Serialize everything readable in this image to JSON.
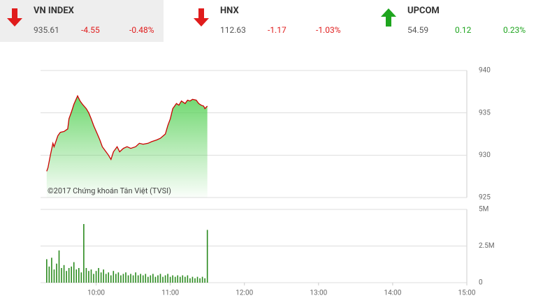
{
  "indices": [
    {
      "name": "VN INDEX",
      "value": "935.61",
      "change": "-4.55",
      "percent": "-0.48%"
    },
    {
      "name": "HNX",
      "value": "112.63",
      "change": "-1.17",
      "percent": "-1.03%"
    },
    {
      "name": "UPCOM",
      "value": "54.59",
      "change": "0.12",
      "percent": "0.23%"
    }
  ],
  "chart_data": [
    {
      "type": "area",
      "color": "#cc0000",
      "annotation": "©2017 Chứng khoán Tân Việt (TVSI)",
      "x": [
        560,
        561,
        563,
        565,
        566,
        569,
        571,
        574,
        577,
        578,
        580,
        582,
        585,
        587,
        589,
        592,
        594,
        596,
        598,
        601,
        603,
        605,
        608,
        610,
        612,
        614,
        617,
        619,
        622,
        625,
        628,
        632,
        635,
        638,
        642,
        645,
        649,
        652,
        656,
        658,
        660,
        662,
        665,
        667,
        669,
        672,
        674,
        676,
        678,
        681,
        683,
        685,
        687,
        688,
        690
      ],
      "values": [
        928.1,
        928.5,
        930.0,
        931.4,
        931.0,
        932.3,
        932.7,
        932.8,
        933.1,
        934.3,
        935.1,
        936.0,
        937.0,
        936.4,
        936.0,
        935.5,
        935.0,
        934.3,
        933.5,
        932.5,
        931.8,
        931.0,
        930.4,
        930.0,
        929.5,
        930.4,
        931.0,
        930.4,
        930.8,
        931.0,
        930.8,
        931.0,
        931.4,
        931.3,
        931.4,
        931.6,
        931.8,
        932.0,
        932.5,
        933.5,
        934.3,
        935.5,
        936.1,
        935.9,
        936.4,
        936.1,
        936.5,
        936.4,
        936.6,
        936.5,
        936.1,
        935.9,
        935.8,
        935.5,
        935.8
      ],
      "xlim": [
        555,
        900
      ],
      "ylim": [
        925,
        940
      ],
      "yticks": [
        925,
        930,
        935,
        940
      ],
      "grid": true
    },
    {
      "type": "bar",
      "color": "#2a8a1e",
      "x": [
        560,
        562,
        564,
        566,
        568,
        570,
        572,
        574,
        576,
        578,
        580,
        582,
        584,
        586,
        588,
        590,
        592,
        594,
        596,
        598,
        600,
        602,
        604,
        606,
        608,
        610,
        612,
        614,
        616,
        618,
        620,
        622,
        624,
        626,
        628,
        630,
        632,
        634,
        636,
        638,
        640,
        642,
        644,
        646,
        648,
        650,
        652,
        654,
        656,
        658,
        660,
        662,
        664,
        666,
        668,
        670,
        672,
        674,
        676,
        678,
        680,
        682,
        684,
        686,
        688,
        690
      ],
      "values": [
        1.6,
        1.1,
        1.7,
        0.9,
        1.3,
        2.2,
        1.0,
        1.2,
        0.8,
        1.0,
        1.1,
        1.4,
        0.9,
        1.0,
        0.7,
        4.0,
        1.0,
        0.8,
        0.9,
        0.6,
        0.8,
        1.0,
        0.7,
        0.9,
        0.6,
        0.7,
        0.5,
        0.8,
        0.6,
        0.7,
        0.5,
        0.6,
        0.7,
        0.5,
        0.6,
        0.5,
        0.7,
        0.5,
        0.6,
        0.5,
        0.6,
        0.4,
        0.5,
        0.6,
        0.4,
        0.5,
        0.6,
        0.4,
        0.5,
        0.6,
        0.4,
        0.5,
        0.4,
        0.5,
        0.4,
        0.5,
        0.4,
        0.5,
        0.3,
        0.4,
        0.3,
        0.4,
        0.3,
        0.4,
        0.3,
        3.6
      ],
      "xlim": [
        555,
        900
      ],
      "xticks": [
        {
          "value": 600,
          "label": "10:00"
        },
        {
          "value": 660,
          "label": "11:00"
        },
        {
          "value": 720,
          "label": "12:00"
        },
        {
          "value": 780,
          "label": "13:00"
        },
        {
          "value": 840,
          "label": "14:00"
        },
        {
          "value": 900,
          "label": "15:00"
        }
      ],
      "ylim": [
        0,
        5
      ],
      "yticks": [
        0,
        {
          "value": 2.5,
          "label": "2.5M"
        },
        {
          "value": 5,
          "label": "5M"
        }
      ],
      "grid": true
    }
  ]
}
